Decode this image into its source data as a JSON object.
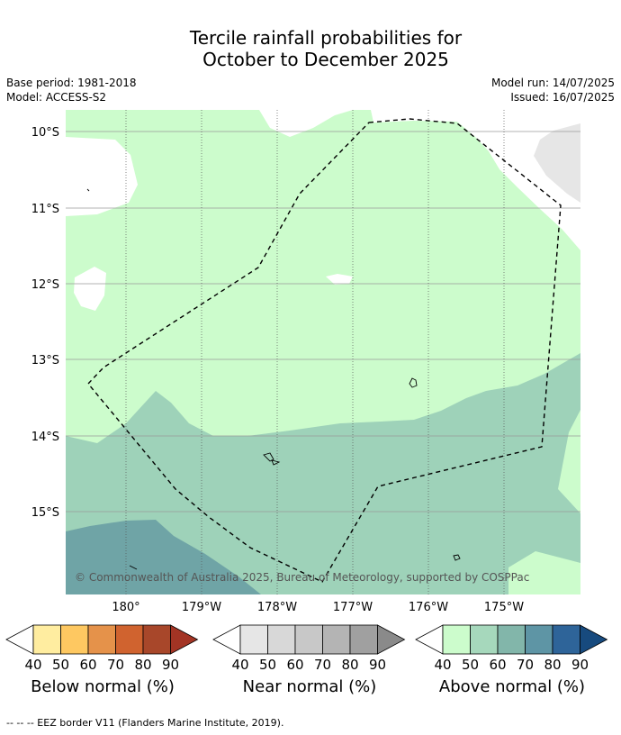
{
  "title": {
    "line1": "Tercile rainfall probabilities for",
    "line2": "October to December 2025"
  },
  "meta": {
    "base_period": "Base period: 1981-2018",
    "model": "Model: ACCESS-S2",
    "model_run": "Model run: 14/07/2025",
    "issued": "Issued: 16/07/2025"
  },
  "map": {
    "lat_labels": [
      "10°S",
      "11°S",
      "12°S",
      "13°S",
      "14°S",
      "15°S"
    ],
    "lon_labels": [
      "180°",
      "179°W",
      "178°W",
      "177°W",
      "176°W",
      "175°W"
    ],
    "copyright": "© Commonwealth of Australia 2025, Bureau of Meteorology, supported by COSPPac",
    "colors": {
      "above_40": "#ccfccc",
      "above_50": "#9ed2b9",
      "above_60": "#6fa4a6",
      "near_40": "#e6e6e6",
      "white": "#ffffff"
    }
  },
  "legends": [
    {
      "name": "Below normal (%)",
      "ticks": [
        "40",
        "50",
        "60",
        "70",
        "80",
        "90"
      ],
      "colors": [
        "#ffeda0",
        "#fec861",
        "#e5924a",
        "#d0632f",
        "#a8472a",
        "#a33424"
      ]
    },
    {
      "name": "Near normal (%)",
      "ticks": [
        "40",
        "50",
        "60",
        "70",
        "80",
        "90"
      ],
      "colors": [
        "#e6e6e6",
        "#d8d8d8",
        "#c8c8c8",
        "#b4b4b4",
        "#a0a0a0",
        "#8a8a8a"
      ]
    },
    {
      "name": "Above normal (%)",
      "ticks": [
        "40",
        "50",
        "60",
        "70",
        "80",
        "90"
      ],
      "colors": [
        "#ccfccc",
        "#a6d8bc",
        "#82b6aa",
        "#5e95a5",
        "#2e6499",
        "#174a7e"
      ]
    }
  ],
  "footnote": "--  --  -- EEZ border V11 (Flanders Marine Institute, 2019)."
}
